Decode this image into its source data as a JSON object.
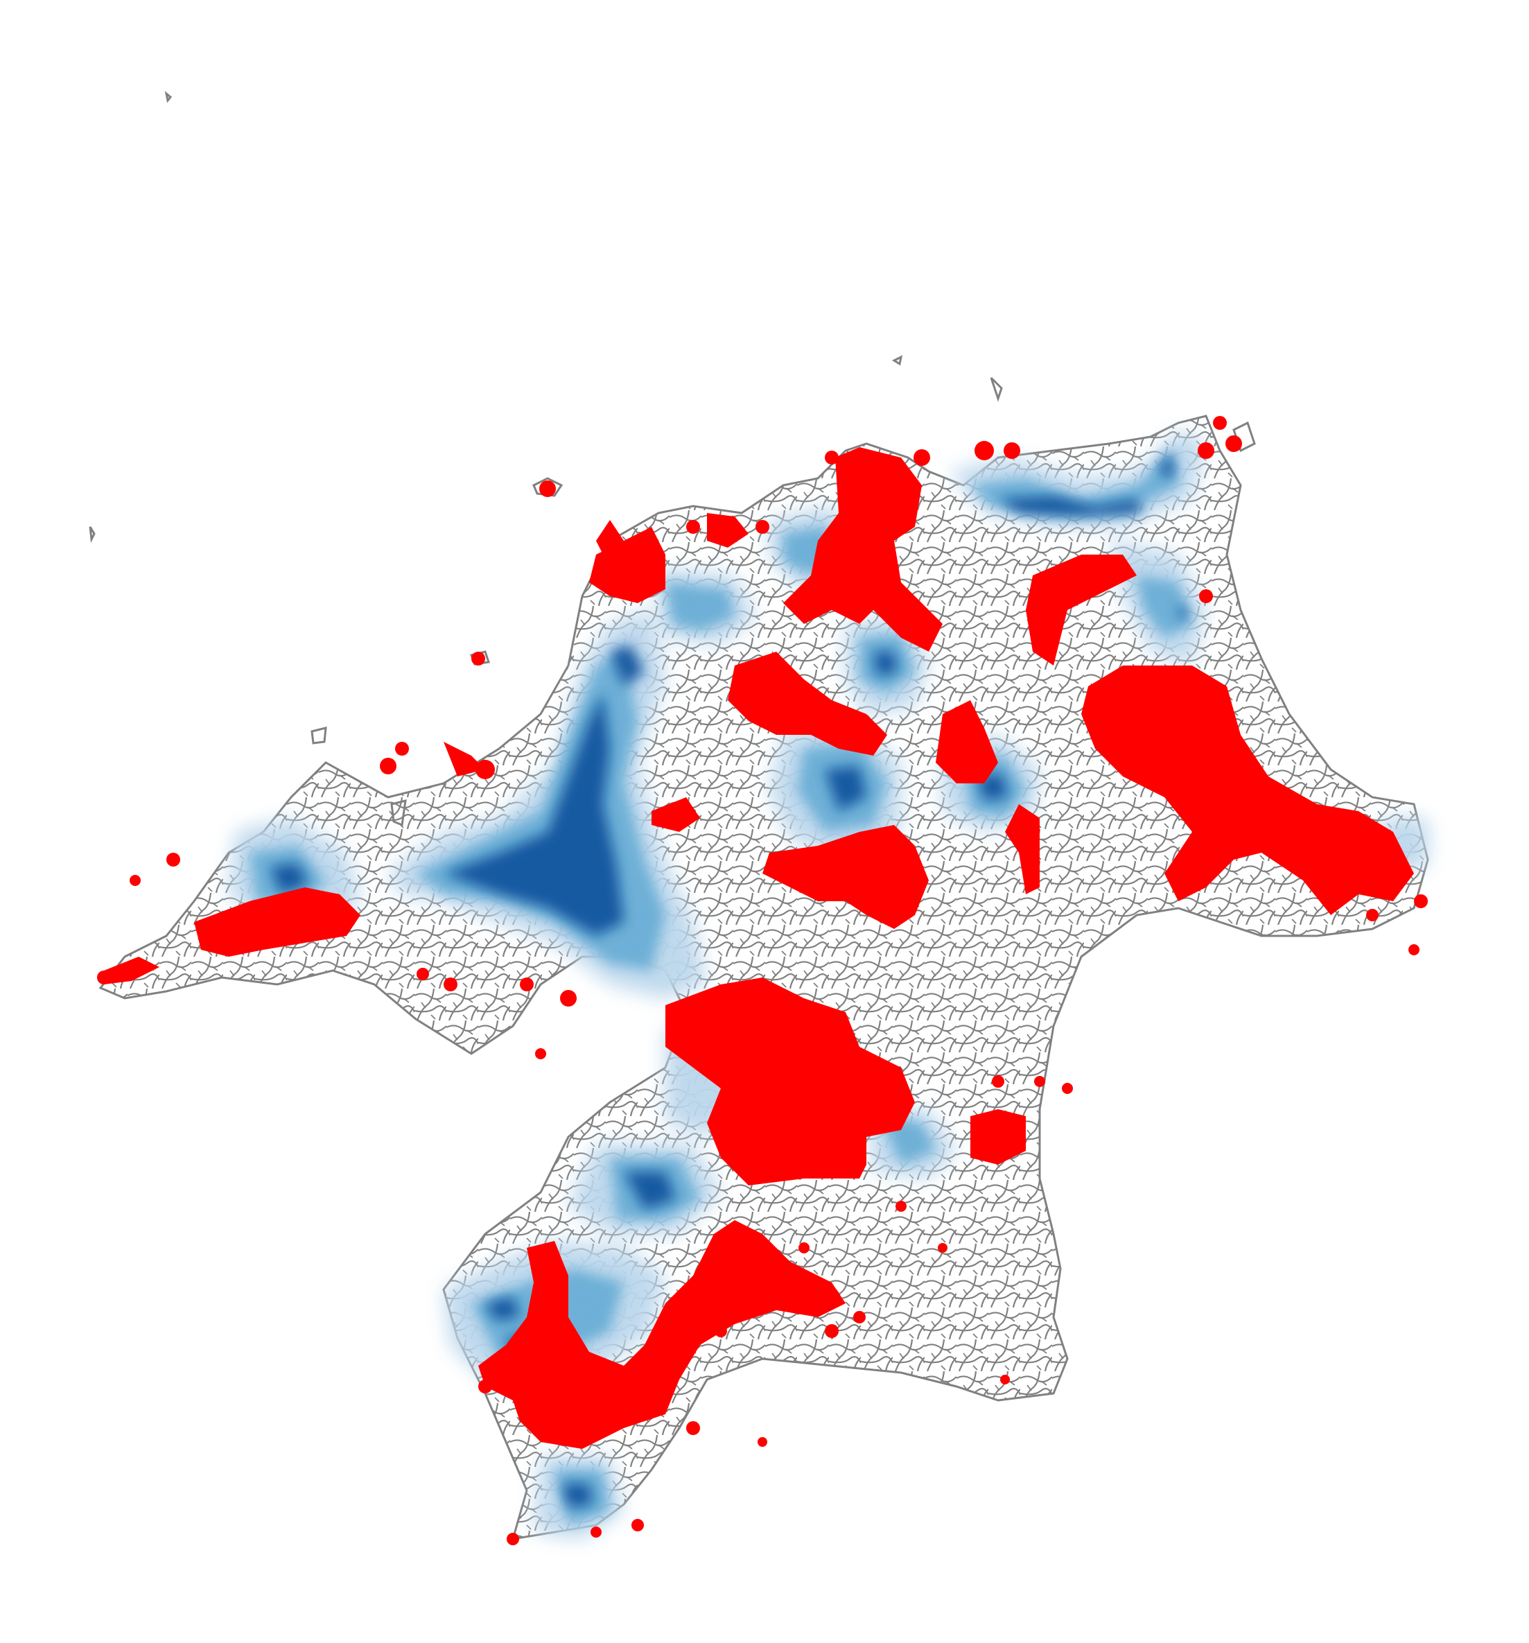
{
  "map": {
    "legend": [],
    "colors": {
      "background": "#ffffff",
      "road_network": "#808080",
      "selected_points": "#ff0000",
      "density_light": "#dbe9f6",
      "density_mid": "#6aaed6",
      "density_dark": "#08519c"
    }
  }
}
